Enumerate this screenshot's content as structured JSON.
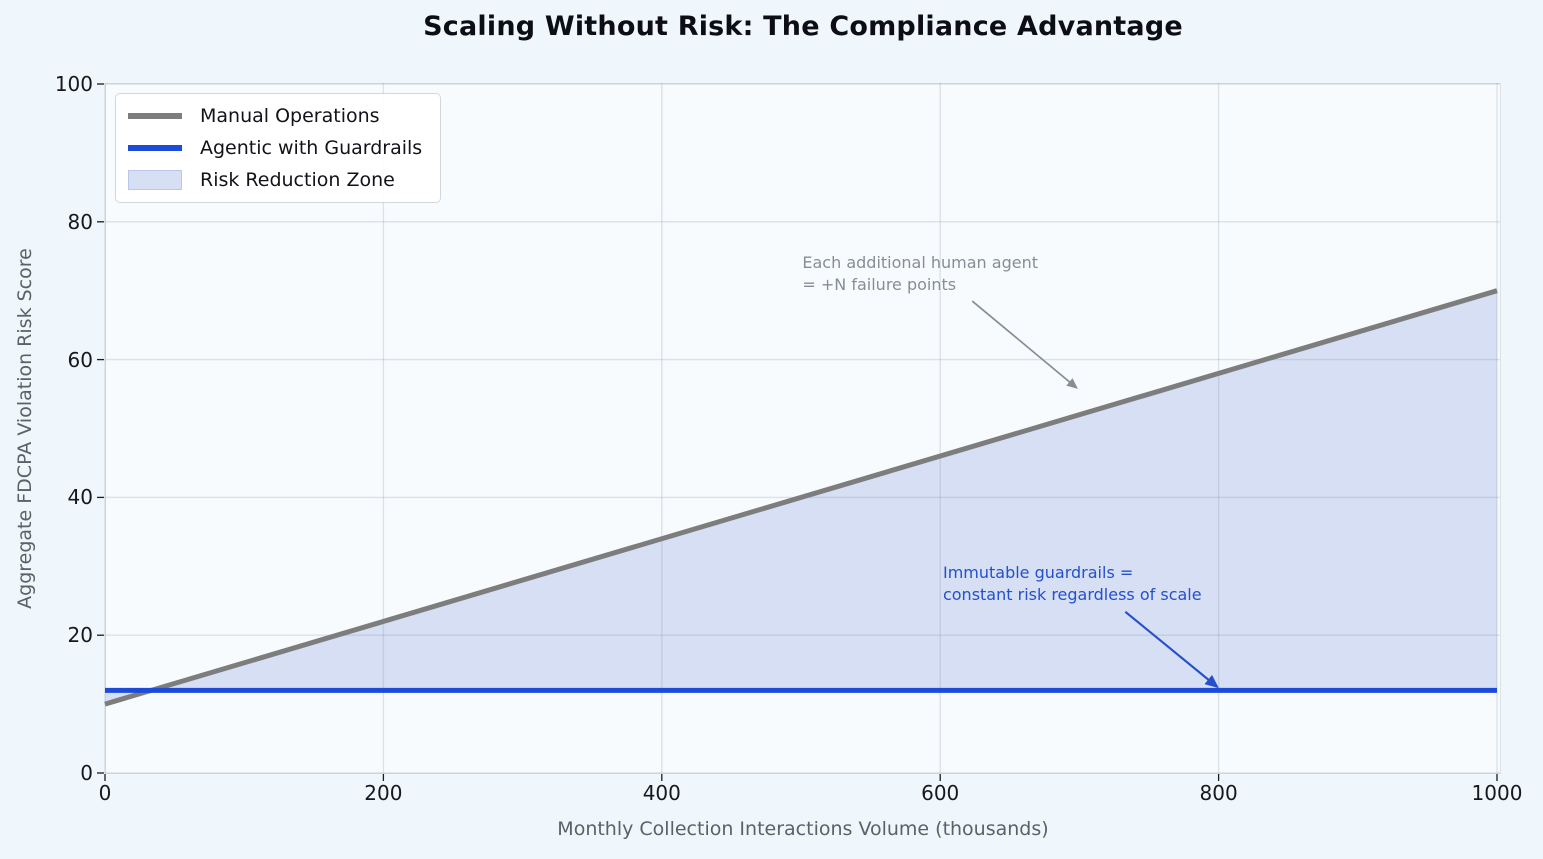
{
  "chart_data": {
    "type": "line",
    "title": "Scaling Without Risk: The Compliance Advantage",
    "xlabel": "Monthly Collection Interactions Volume (thousands)",
    "ylabel": "Aggregate FDCPA Violation Risk Score",
    "xlim": [
      0,
      1000
    ],
    "ylim": [
      0,
      100
    ],
    "xticks": [
      0,
      200,
      400,
      600,
      800,
      1000
    ],
    "yticks": [
      0,
      20,
      40,
      60,
      80,
      100
    ],
    "grid": true,
    "legend_position": "upper-left",
    "series": [
      {
        "name": "Manual Operations",
        "color": "#7d7d7d",
        "x": [
          0,
          1000
        ],
        "y": [
          10,
          70
        ]
      },
      {
        "name": "Agentic with Guardrails",
        "color": "#1c4bd8",
        "x": [
          0,
          1000
        ],
        "y": [
          12,
          12
        ]
      }
    ],
    "fill_between": {
      "name": "Risk Reduction Zone",
      "color": "#d6dff4",
      "border_color": "#b9c6ee",
      "between": [
        "Manual Operations",
        "Agentic with Guardrails"
      ]
    },
    "annotations": [
      {
        "text": "Each additional human agent\n= +N failure points",
        "color": "#878d96",
        "text_xy": [
          501,
          75.6
        ],
        "arrow_from": [
          623,
          68.5
        ],
        "arrow_to": [
          698,
          55.9
        ]
      },
      {
        "text": "Immutable guardrails =\nconstant risk regardless of scale",
        "color": "#2450cc",
        "text_xy": [
          602,
          30.6
        ],
        "arrow_from": [
          733,
          23.4
        ],
        "arrow_to": [
          799,
          12.5
        ]
      }
    ]
  }
}
